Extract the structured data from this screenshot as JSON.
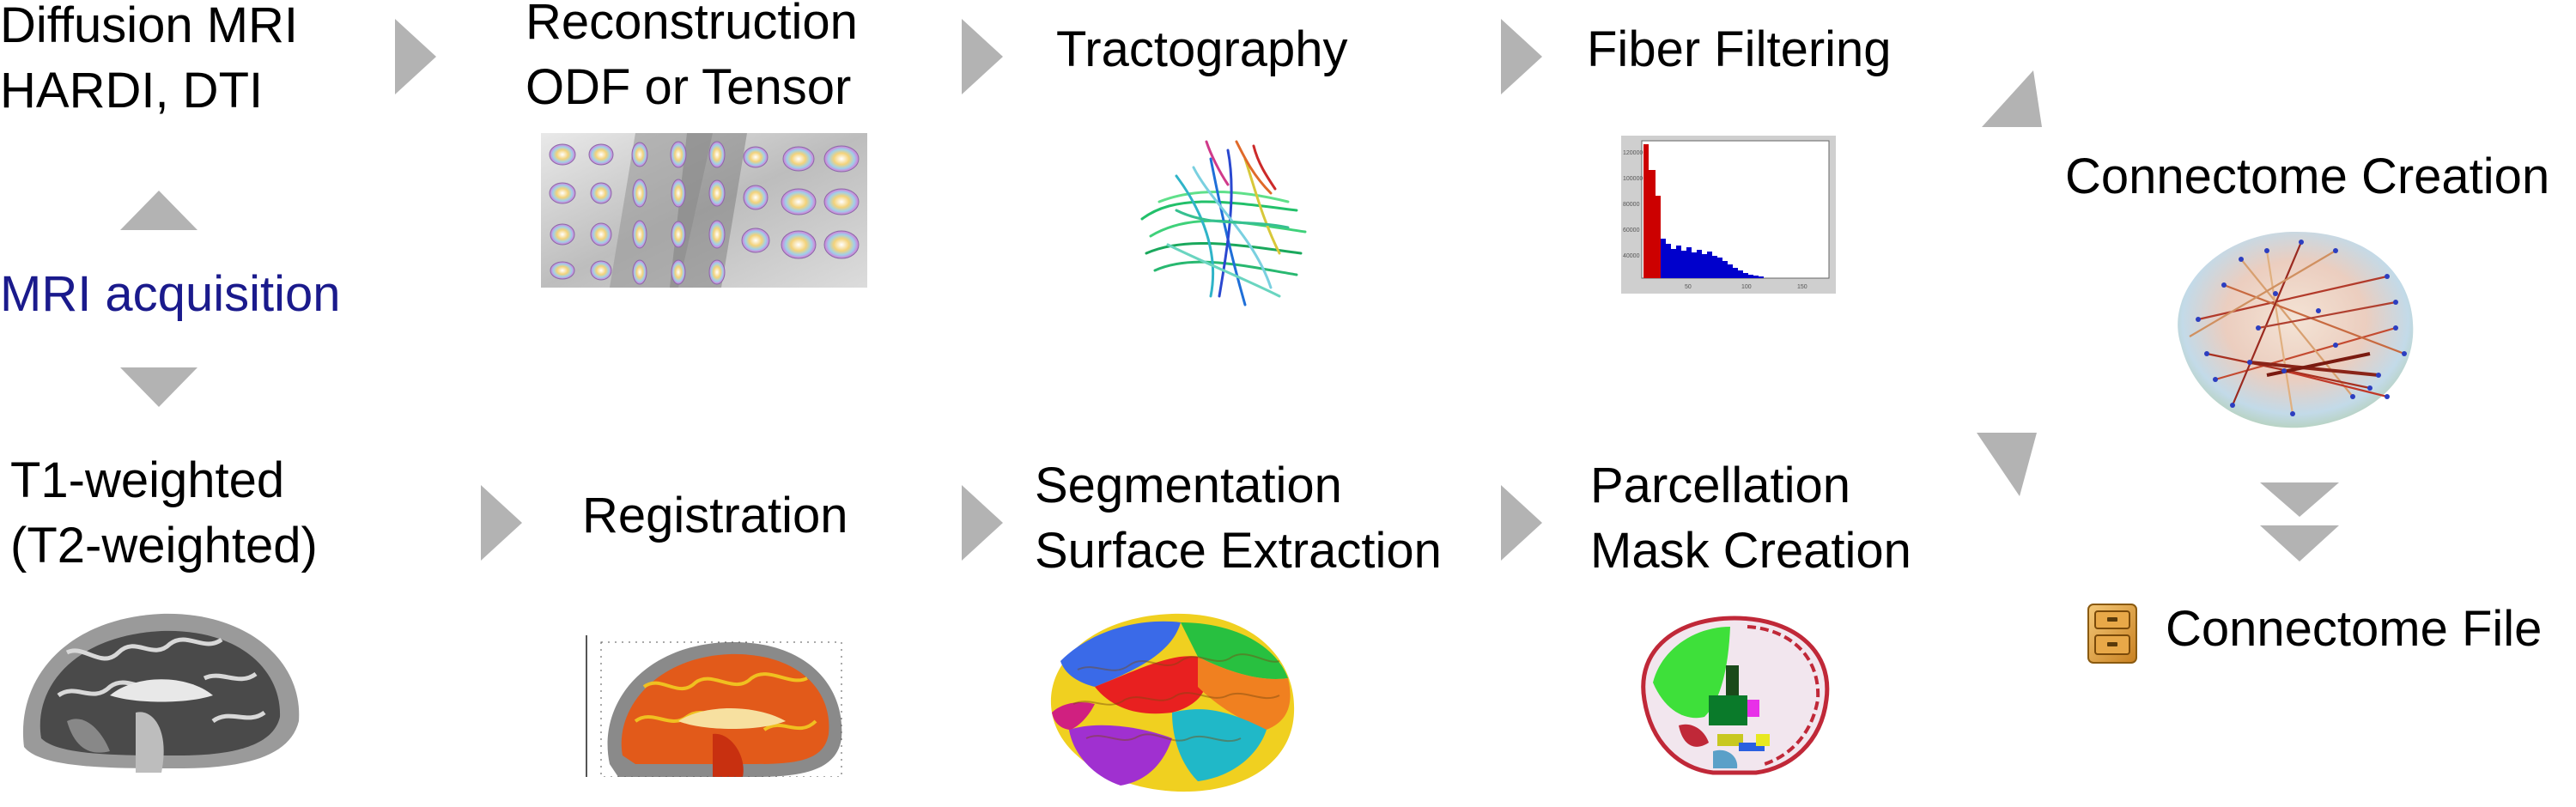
{
  "labels": {
    "diffusion": "Diffusion MRI\nHARDI, DTI",
    "reconstruction": "Reconstruction\nODF or Tensor",
    "tractography": "Tractography",
    "fiber_filtering": "Fiber Filtering",
    "connectome_creation": "Connectome Creation",
    "mri_acquisition": "MRI acquisition",
    "t1": "T1-weighted\n(T2-weighted)",
    "registration": "Registration",
    "segmentation": "Segmentation\nSurface Extraction",
    "parcellation": "Parcellation\nMask Creation",
    "connectome_file": "Connectome File"
  },
  "colors": {
    "arrow": "#b3b3b3",
    "mri_acquisition_text": "#1a1a8c",
    "histogram_red": "#cc0000",
    "histogram_blue": "#0000cc"
  },
  "icons": {
    "file": "file-cabinet-icon"
  }
}
